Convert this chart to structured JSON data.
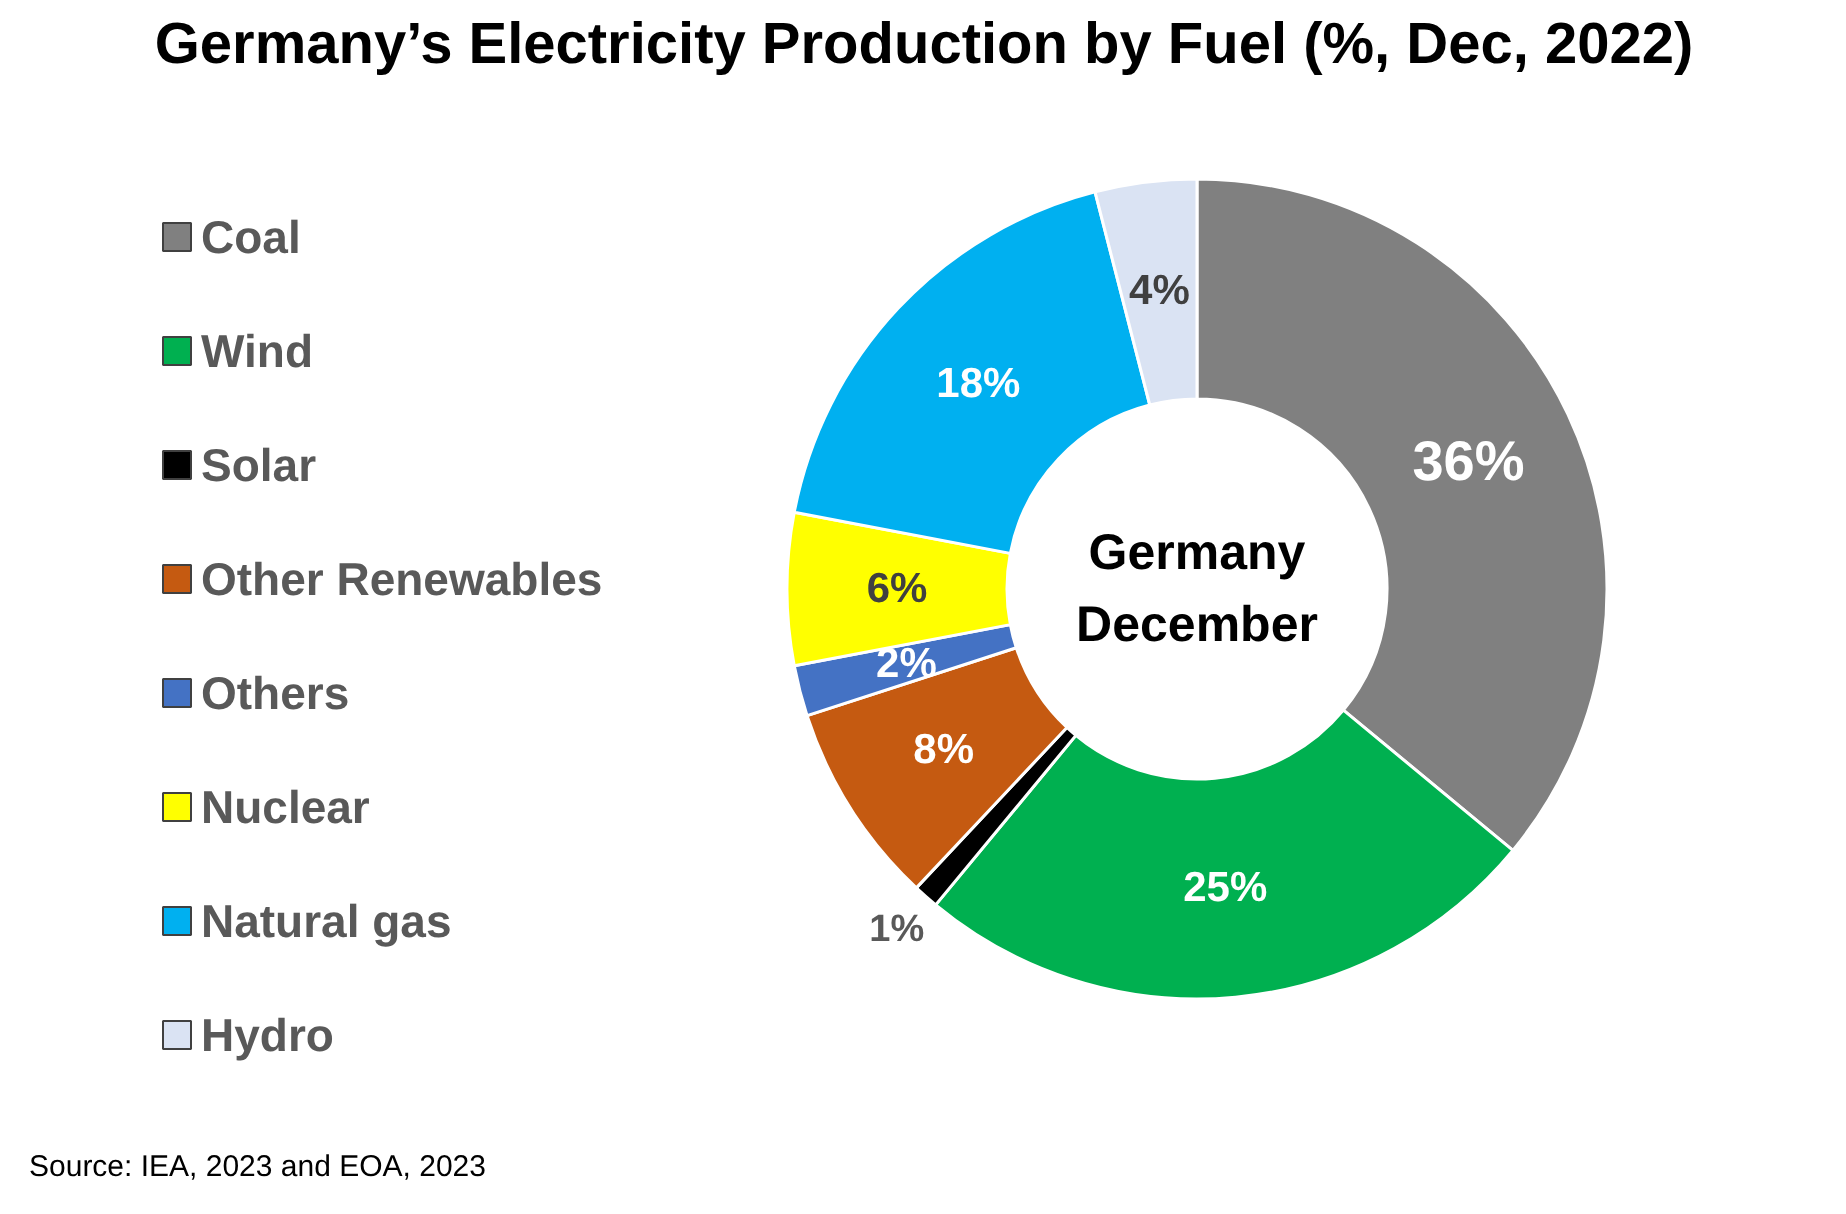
{
  "chart_data": {
    "type": "donut",
    "title": "Germany’s Electricity Production by Fuel (%, Dec, 2022)",
    "categories": [
      "Coal",
      "Wind",
      "Solar",
      "Other Renewables",
      "Others",
      "Nuclear",
      "Natural gas",
      "Hydro"
    ],
    "values": [
      36,
      25,
      1,
      8,
      2,
      6,
      18,
      4
    ],
    "colors": [
      "#808080",
      "#00b050",
      "#000000",
      "#c55a11",
      "#4472c4",
      "#ffff00",
      "#00b0f0",
      "#dae3f3"
    ],
    "value_labels": [
      "36%",
      "25%",
      "1%",
      "8%",
      "2%",
      "6%",
      "18%",
      "4%"
    ],
    "legend": "left",
    "annotations": [
      "Germany\nDecember",
      "Source: IEA, 2023 and EOA, 2023"
    ]
  }
}
